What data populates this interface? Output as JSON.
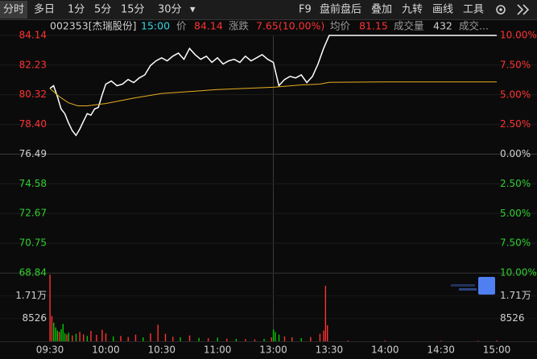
{
  "toolbar": {
    "tabs": [
      "分时",
      "多日",
      "1分",
      "5分",
      "15分",
      "30分"
    ],
    "menu": "▾",
    "selected": 0,
    "tools": [
      "F9",
      "盘前盘后",
      "叠加",
      "九转",
      "画线",
      "工具"
    ]
  },
  "info": {
    "code": "002353[杰瑞股份]",
    "time": "15:00",
    "price_label": "价",
    "price": 84.14,
    "change_label": "涨跌",
    "change": "7.65(10.00%)",
    "avg_label": "均价",
    "avg": 81.15,
    "volume_label": "成交量",
    "volume": 432,
    "more": "成交..."
  },
  "chart_data": [
    {
      "type": "line",
      "up_color": "#ff3232",
      "down_color": "#2fd02f",
      "flat_color": "#d0d0d0",
      "ylim": [
        68.84,
        84.14
      ],
      "yticks": [
        84.14,
        82.23,
        80.32,
        {
          "value": 78.4,
          "label": "78.40"
        },
        76.49,
        74.58,
        72.67,
        70.75,
        68.84
      ],
      "y2lim": [
        -10,
        10
      ],
      "y2ticks": [
        {
          "value": 10,
          "label": "10.00%"
        },
        {
          "value": 7.5,
          "label": "7.50%"
        },
        {
          "value": 5,
          "label": "5.00%"
        },
        {
          "value": 2.5,
          "label": "2.50%"
        },
        {
          "value": 0,
          "label": "0.00%"
        },
        {
          "value": -2.5,
          "label": "2.50%"
        },
        {
          "value": -5,
          "label": "5.00%"
        },
        {
          "value": -7.5,
          "label": "7.50%"
        },
        {
          "value": -10,
          "label": "10.00%"
        }
      ],
      "xlim": [
        "09:30",
        "15:00"
      ],
      "series": [
        {
          "name": "价",
          "color": "#ffffff",
          "x": [
            "09:30",
            "09:32",
            "09:34",
            "09:36",
            "09:38",
            "09:40",
            "09:42",
            "09:44",
            "09:46",
            "09:48",
            "09:50",
            "09:52",
            "09:54",
            "09:56",
            "09:58",
            "10:00",
            "10:03",
            "10:06",
            "10:09",
            "10:12",
            "10:15",
            "10:18",
            "10:21",
            "10:24",
            "10:27",
            "10:30",
            "10:33",
            "10:36",
            "10:39",
            "10:42",
            "10:45",
            "10:48",
            "10:51",
            "10:54",
            "10:57",
            "11:00",
            "11:03",
            "11:06",
            "11:09",
            "11:12",
            "11:15",
            "11:18",
            "11:21",
            "11:24",
            "11:27",
            "11:30",
            "13:03",
            "13:06",
            "13:09",
            "13:12",
            "13:15",
            "13:18",
            "13:21",
            "13:24",
            "13:27",
            "13:30",
            "14:00",
            "14:30",
            "15:00"
          ],
          "values": [
            80.72,
            80.9,
            80.2,
            79.4,
            79.1,
            78.5,
            78.0,
            77.7,
            78.1,
            78.6,
            79.1,
            79.0,
            79.4,
            79.5,
            80.3,
            81.0,
            81.2,
            80.9,
            81.0,
            81.3,
            81.1,
            81.4,
            81.6,
            82.2,
            82.5,
            82.7,
            82.5,
            82.8,
            83.0,
            82.6,
            83.3,
            82.9,
            82.6,
            82.8,
            82.4,
            82.7,
            82.3,
            82.5,
            82.6,
            82.4,
            82.8,
            82.5,
            82.7,
            82.9,
            82.6,
            82.4,
            80.9,
            81.3,
            81.5,
            81.4,
            81.6,
            81.1,
            81.5,
            82.3,
            83.3,
            84.14,
            84.14,
            84.14,
            84.14
          ]
        },
        {
          "name": "均价",
          "color": "#e8b020",
          "x": [
            "09:30",
            "09:35",
            "09:40",
            "09:45",
            "09:50",
            "10:00",
            "10:15",
            "10:30",
            "11:00",
            "11:30",
            "13:15",
            "13:25",
            "13:30",
            "14:00",
            "14:30",
            "15:00"
          ],
          "values": [
            80.72,
            80.2,
            79.8,
            79.6,
            79.6,
            79.75,
            80.1,
            80.4,
            80.65,
            80.8,
            80.95,
            81.0,
            81.12,
            81.14,
            81.15,
            81.15
          ]
        }
      ]
    },
    {
      "type": "bar",
      "ylim": [
        0,
        25650
      ],
      "yticks": [
        {
          "value": 17100,
          "label": "1.71万"
        },
        8526
      ],
      "xlim": [
        "09:30",
        "15:00"
      ],
      "xticks": [
        "09:30",
        "10:00",
        "10:30",
        "11:00",
        "13:00",
        "13:30",
        "14:00",
        "14:30",
        "15:00"
      ],
      "x": [
        "09:30",
        "09:31",
        "09:32",
        "09:33",
        "09:34",
        "09:35",
        "09:36",
        "09:37",
        "09:38",
        "09:39",
        "09:40",
        "09:42",
        "09:44",
        "09:46",
        "09:48",
        "09:50",
        "09:52",
        "09:55",
        "09:58",
        "10:00",
        "10:04",
        "10:08",
        "10:12",
        "10:16",
        "10:20",
        "10:24",
        "10:28",
        "10:32",
        "10:36",
        "10:40",
        "10:45",
        "10:50",
        "10:55",
        "11:00",
        "11:05",
        "11:10",
        "11:15",
        "11:20",
        "11:25",
        "11:29",
        "13:00",
        "13:01",
        "13:03",
        "13:06",
        "13:10",
        "13:15",
        "13:20",
        "13:25",
        "13:27",
        "13:28",
        "13:29",
        "13:40",
        "14:00",
        "14:30",
        "14:50",
        "15:00"
      ],
      "values": [
        25000,
        9500,
        7000,
        5200,
        4000,
        3500,
        4500,
        6500,
        3000,
        2500,
        3200,
        2200,
        2800,
        3500,
        2600,
        2000,
        3900,
        2400,
        4300,
        3000,
        1800,
        2000,
        1600,
        2500,
        1500,
        3000,
        6200,
        2800,
        1700,
        1500,
        2200,
        1300,
        1200,
        1400,
        1000,
        900,
        800,
        700,
        900,
        1500,
        4500,
        3500,
        2500,
        1800,
        1500,
        1200,
        1600,
        2800,
        4000,
        20800,
        6000,
        300,
        300,
        250,
        200,
        300
      ],
      "colors": [
        "#ff3232",
        "#ff3232",
        "#00c800",
        "#00c800",
        "#00c800",
        "#ff3232",
        "#00c800",
        "#00c800",
        "#00c800",
        "#ff3232",
        "#00c800",
        "#ff3232",
        "#00c800",
        "#ff3232",
        "#ff3232",
        "#00c800",
        "#ff3232",
        "#ff3232",
        "#ff3232",
        "#ff3232",
        "#00c800",
        "#ff3232",
        "#ff3232",
        "#ff3232",
        "#00c800",
        "#ff3232",
        "#ff3232",
        "#ff3232",
        "#ff3232",
        "#00c800",
        "#ff3232",
        "#00c800",
        "#ff3232",
        "#00c800",
        "#ff3232",
        "#00c800",
        "#ff3232",
        "#ff3232",
        "#00c800",
        "#ff3232",
        "#00c800",
        "#00c800",
        "#00c800",
        "#ff3232",
        "#ff3232",
        "#00c800",
        "#ff3232",
        "#ff3232",
        "#ff3232",
        "#ff3232",
        "#ff3232",
        "#ff3232",
        "#ff3232",
        "#ff3232",
        "#ff3232",
        "#ff3232"
      ]
    }
  ]
}
